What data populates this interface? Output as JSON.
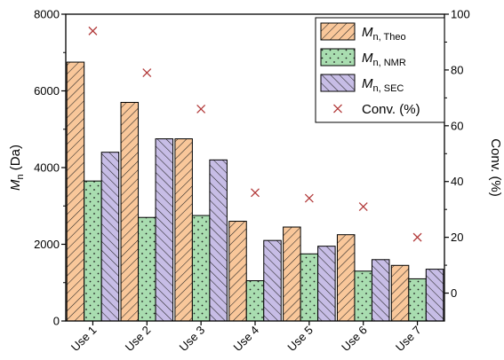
{
  "chart_data": {
    "type": "bar",
    "categories": [
      "Use 1",
      "Use 2",
      "Use 3",
      "Use 4",
      "Use 5",
      "Use 6",
      "Use 7"
    ],
    "series": [
      {
        "name": "Mn, Theo",
        "label_main": "M",
        "label_sub": "n, Theo",
        "axis": "left",
        "color": "#f9c79a",
        "pattern": "hatch-forward",
        "values": [
          6750,
          5700,
          4750,
          2600,
          2450,
          2250,
          1450
        ]
      },
      {
        "name": "Mn, NMR",
        "label_main": "M",
        "label_sub": "n, NMR",
        "axis": "left",
        "color": "#a9ddb0",
        "pattern": "dots",
        "values": [
          3650,
          2700,
          2750,
          1050,
          1750,
          1300,
          1100
        ]
      },
      {
        "name": "Mn, SEC",
        "label_main": "M",
        "label_sub": "n, SEC",
        "axis": "left",
        "color": "#c7bde6",
        "pattern": "hatch-back",
        "values": [
          4400,
          4750,
          4200,
          2100,
          1950,
          1600,
          1350
        ]
      },
      {
        "name": "Conv. (%)",
        "label_main": "Conv. (%)",
        "label_sub": "",
        "axis": "right",
        "type": "scatter",
        "marker": "x",
        "color": "#b23a3a",
        "values": [
          94,
          79,
          66,
          36,
          34,
          31,
          20
        ]
      }
    ],
    "y_left": {
      "label_main": "M",
      "label_sub": "n",
      "label_unit": " (Da)",
      "ylim": [
        0,
        8000
      ],
      "ticks": [
        0,
        2000,
        4000,
        6000,
        8000
      ],
      "tick_labels": [
        "0",
        "2000",
        "4000",
        "6000",
        "8000"
      ]
    },
    "y_right": {
      "label": "Conv. (%)",
      "ylim": [
        -10,
        100
      ],
      "ticks": [
        0,
        20,
        40,
        60,
        80,
        100
      ],
      "tick_labels": [
        "0",
        "20",
        "40",
        "60",
        "80",
        "100"
      ]
    },
    "x_tick_rotation": -45,
    "grid": false,
    "legend_position": "top-right"
  }
}
